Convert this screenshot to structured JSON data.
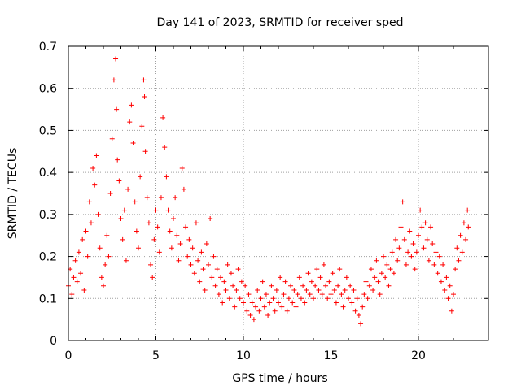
{
  "chart_data": {
    "type": "scatter",
    "title": "Day 141 of 2023, SRMTID for receiver sped",
    "xlabel": "GPS time / hours",
    "ylabel": "SRMTID / TECUs",
    "xlim": [
      0,
      24
    ],
    "ylim": [
      0,
      0.7
    ],
    "xticks": [
      0,
      5,
      10,
      15,
      20
    ],
    "xtick_labels": [
      "0",
      "5",
      "10",
      "15",
      "20"
    ],
    "yticks": [
      0,
      0.1,
      0.2,
      0.3,
      0.4,
      0.5,
      0.6,
      0.7
    ],
    "ytick_labels": [
      "0",
      "0.1",
      "0.2",
      "0.3",
      "0.4",
      "0.5",
      "0.6",
      "0.7"
    ],
    "grid": true,
    "marker": "plus",
    "color": "#ff0000",
    "series": [
      {
        "name": "SRMTID",
        "points": [
          [
            0.0,
            0.13
          ],
          [
            0.1,
            0.17
          ],
          [
            0.2,
            0.11
          ],
          [
            0.3,
            0.15
          ],
          [
            0.4,
            0.19
          ],
          [
            0.5,
            0.14
          ],
          [
            0.6,
            0.21
          ],
          [
            0.7,
            0.16
          ],
          [
            0.8,
            0.24
          ],
          [
            0.9,
            0.12
          ],
          [
            1.0,
            0.26
          ],
          [
            1.1,
            0.2
          ],
          [
            1.2,
            0.33
          ],
          [
            1.3,
            0.28
          ],
          [
            1.4,
            0.41
          ],
          [
            1.5,
            0.37
          ],
          [
            1.6,
            0.44
          ],
          [
            1.7,
            0.3
          ],
          [
            1.8,
            0.22
          ],
          [
            1.9,
            0.15
          ],
          [
            2.0,
            0.13
          ],
          [
            2.1,
            0.18
          ],
          [
            2.2,
            0.25
          ],
          [
            2.3,
            0.2
          ],
          [
            2.4,
            0.35
          ],
          [
            2.5,
            0.48
          ],
          [
            2.6,
            0.62
          ],
          [
            2.7,
            0.67
          ],
          [
            2.75,
            0.55
          ],
          [
            2.8,
            0.43
          ],
          [
            2.9,
            0.38
          ],
          [
            3.0,
            0.29
          ],
          [
            3.1,
            0.24
          ],
          [
            3.2,
            0.31
          ],
          [
            3.3,
            0.19
          ],
          [
            3.4,
            0.36
          ],
          [
            3.5,
            0.52
          ],
          [
            3.6,
            0.56
          ],
          [
            3.7,
            0.47
          ],
          [
            3.8,
            0.33
          ],
          [
            3.9,
            0.26
          ],
          [
            4.0,
            0.22
          ],
          [
            4.1,
            0.39
          ],
          [
            4.2,
            0.51
          ],
          [
            4.3,
            0.62
          ],
          [
            4.35,
            0.58
          ],
          [
            4.4,
            0.45
          ],
          [
            4.5,
            0.34
          ],
          [
            4.6,
            0.28
          ],
          [
            4.7,
            0.18
          ],
          [
            4.8,
            0.15
          ],
          [
            4.9,
            0.24
          ],
          [
            5.0,
            0.31
          ],
          [
            5.1,
            0.27
          ],
          [
            5.2,
            0.21
          ],
          [
            5.3,
            0.34
          ],
          [
            5.4,
            0.53
          ],
          [
            5.5,
            0.46
          ],
          [
            5.6,
            0.39
          ],
          [
            5.7,
            0.31
          ],
          [
            5.8,
            0.26
          ],
          [
            5.9,
            0.22
          ],
          [
            6.0,
            0.29
          ],
          [
            6.1,
            0.34
          ],
          [
            6.2,
            0.25
          ],
          [
            6.3,
            0.19
          ],
          [
            6.4,
            0.23
          ],
          [
            6.5,
            0.41
          ],
          [
            6.6,
            0.36
          ],
          [
            6.7,
            0.27
          ],
          [
            6.8,
            0.2
          ],
          [
            6.9,
            0.24
          ],
          [
            7.0,
            0.18
          ],
          [
            7.1,
            0.22
          ],
          [
            7.2,
            0.16
          ],
          [
            7.3,
            0.28
          ],
          [
            7.4,
            0.19
          ],
          [
            7.5,
            0.14
          ],
          [
            7.6,
            0.21
          ],
          [
            7.7,
            0.17
          ],
          [
            7.8,
            0.12
          ],
          [
            7.9,
            0.23
          ],
          [
            8.0,
            0.18
          ],
          [
            8.1,
            0.29
          ],
          [
            8.2,
            0.15
          ],
          [
            8.3,
            0.2
          ],
          [
            8.4,
            0.13
          ],
          [
            8.5,
            0.17
          ],
          [
            8.6,
            0.11
          ],
          [
            8.7,
            0.15
          ],
          [
            8.8,
            0.09
          ],
          [
            8.9,
            0.14
          ],
          [
            9.0,
            0.12
          ],
          [
            9.1,
            0.18
          ],
          [
            9.2,
            0.1
          ],
          [
            9.3,
            0.16
          ],
          [
            9.4,
            0.13
          ],
          [
            9.5,
            0.08
          ],
          [
            9.6,
            0.12
          ],
          [
            9.7,
            0.17
          ],
          [
            9.8,
            0.1
          ],
          [
            9.9,
            0.14
          ],
          [
            10.0,
            0.09
          ],
          [
            10.1,
            0.13
          ],
          [
            10.2,
            0.07
          ],
          [
            10.3,
            0.11
          ],
          [
            10.4,
            0.06
          ],
          [
            10.5,
            0.09
          ],
          [
            10.6,
            0.05
          ],
          [
            10.7,
            0.08
          ],
          [
            10.8,
            0.12
          ],
          [
            10.9,
            0.07
          ],
          [
            11.0,
            0.1
          ],
          [
            11.1,
            0.14
          ],
          [
            11.2,
            0.08
          ],
          [
            11.3,
            0.11
          ],
          [
            11.4,
            0.06
          ],
          [
            11.5,
            0.09
          ],
          [
            11.6,
            0.13
          ],
          [
            11.7,
            0.1
          ],
          [
            11.8,
            0.07
          ],
          [
            11.9,
            0.12
          ],
          [
            12.0,
            0.09
          ],
          [
            12.1,
            0.15
          ],
          [
            12.2,
            0.08
          ],
          [
            12.3,
            0.11
          ],
          [
            12.4,
            0.14
          ],
          [
            12.5,
            0.07
          ],
          [
            12.6,
            0.1
          ],
          [
            12.7,
            0.13
          ],
          [
            12.8,
            0.09
          ],
          [
            12.9,
            0.12
          ],
          [
            13.0,
            0.08
          ],
          [
            13.1,
            0.11
          ],
          [
            13.2,
            0.15
          ],
          [
            13.3,
            0.1
          ],
          [
            13.4,
            0.13
          ],
          [
            13.5,
            0.09
          ],
          [
            13.6,
            0.12
          ],
          [
            13.7,
            0.16
          ],
          [
            13.8,
            0.11
          ],
          [
            13.9,
            0.14
          ],
          [
            14.0,
            0.1
          ],
          [
            14.1,
            0.13
          ],
          [
            14.2,
            0.17
          ],
          [
            14.3,
            0.12
          ],
          [
            14.4,
            0.15
          ],
          [
            14.5,
            0.11
          ],
          [
            14.6,
            0.18
          ],
          [
            14.7,
            0.13
          ],
          [
            14.8,
            0.1
          ],
          [
            14.9,
            0.14
          ],
          [
            15.0,
            0.11
          ],
          [
            15.1,
            0.16
          ],
          [
            15.2,
            0.12
          ],
          [
            15.3,
            0.09
          ],
          [
            15.4,
            0.13
          ],
          [
            15.5,
            0.17
          ],
          [
            15.6,
            0.11
          ],
          [
            15.7,
            0.08
          ],
          [
            15.8,
            0.12
          ],
          [
            15.9,
            0.15
          ],
          [
            16.0,
            0.1
          ],
          [
            16.1,
            0.13
          ],
          [
            16.2,
            0.09
          ],
          [
            16.3,
            0.12
          ],
          [
            16.4,
            0.07
          ],
          [
            16.5,
            0.1
          ],
          [
            16.6,
            0.06
          ],
          [
            16.7,
            0.04
          ],
          [
            16.8,
            0.08
          ],
          [
            16.9,
            0.11
          ],
          [
            17.0,
            0.14
          ],
          [
            17.1,
            0.1
          ],
          [
            17.2,
            0.13
          ],
          [
            17.3,
            0.17
          ],
          [
            17.4,
            0.12
          ],
          [
            17.5,
            0.15
          ],
          [
            17.6,
            0.19
          ],
          [
            17.7,
            0.14
          ],
          [
            17.8,
            0.11
          ],
          [
            17.9,
            0.16
          ],
          [
            18.0,
            0.2
          ],
          [
            18.1,
            0.15
          ],
          [
            18.2,
            0.18
          ],
          [
            18.3,
            0.13
          ],
          [
            18.4,
            0.17
          ],
          [
            18.5,
            0.21
          ],
          [
            18.6,
            0.16
          ],
          [
            18.7,
            0.24
          ],
          [
            18.8,
            0.19
          ],
          [
            18.9,
            0.22
          ],
          [
            19.0,
            0.27
          ],
          [
            19.1,
            0.33
          ],
          [
            19.2,
            0.24
          ],
          [
            19.3,
            0.18
          ],
          [
            19.4,
            0.21
          ],
          [
            19.5,
            0.26
          ],
          [
            19.6,
            0.2
          ],
          [
            19.7,
            0.23
          ],
          [
            19.8,
            0.17
          ],
          [
            19.9,
            0.21
          ],
          [
            20.0,
            0.25
          ],
          [
            20.1,
            0.31
          ],
          [
            20.2,
            0.27
          ],
          [
            20.3,
            0.22
          ],
          [
            20.4,
            0.28
          ],
          [
            20.5,
            0.24
          ],
          [
            20.6,
            0.19
          ],
          [
            20.7,
            0.27
          ],
          [
            20.8,
            0.23
          ],
          [
            20.9,
            0.18
          ],
          [
            21.0,
            0.21
          ],
          [
            21.1,
            0.16
          ],
          [
            21.2,
            0.2
          ],
          [
            21.3,
            0.14
          ],
          [
            21.4,
            0.18
          ],
          [
            21.5,
            0.12
          ],
          [
            21.6,
            0.15
          ],
          [
            21.7,
            0.1
          ],
          [
            21.8,
            0.13
          ],
          [
            21.9,
            0.07
          ],
          [
            22.0,
            0.11
          ],
          [
            22.1,
            0.17
          ],
          [
            22.2,
            0.22
          ],
          [
            22.3,
            0.19
          ],
          [
            22.4,
            0.25
          ],
          [
            22.5,
            0.21
          ],
          [
            22.6,
            0.28
          ],
          [
            22.7,
            0.24
          ],
          [
            22.8,
            0.31
          ],
          [
            22.85,
            0.27
          ]
        ]
      }
    ]
  }
}
